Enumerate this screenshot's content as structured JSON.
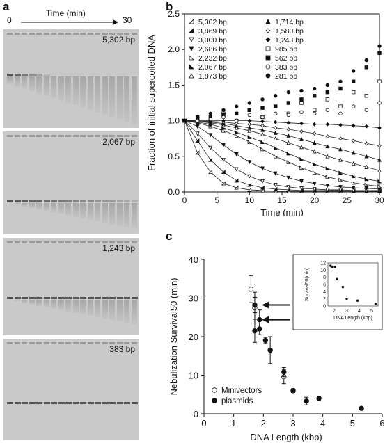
{
  "panel_a": {
    "letter": "a",
    "time_start": "0",
    "time_title": "Time (min)",
    "time_end": "30",
    "gels": [
      {
        "label": "5,302 bp"
      },
      {
        "label": "2,067 bp"
      },
      {
        "label": "1,243 bp"
      },
      {
        "label": "383 bp"
      }
    ]
  },
  "chart_data": [
    {
      "panel": "b",
      "type": "scatter",
      "xlabel": "Time (min)",
      "ylabel": "Fraction of initial supercoiled DNA",
      "xlim": [
        0,
        30
      ],
      "ylim": [
        0,
        2.5
      ],
      "xticks": [
        "0",
        "5",
        "10",
        "15",
        "20",
        "25",
        "30"
      ],
      "yticks": [
        "0.0",
        "0.5",
        "1.0",
        "1.5",
        "2.0",
        "2.5"
      ],
      "legend_position": "top-left",
      "x": [
        0,
        2,
        4,
        6,
        8,
        10,
        12,
        14,
        16,
        18,
        20,
        22,
        24,
        26,
        28,
        30
      ],
      "series": [
        {
          "name": "5,302 bp",
          "marker": "half-triangle-open",
          "values": [
            1.0,
            0.55,
            0.28,
            0.12,
            0.06,
            0.03,
            0.02,
            0.01,
            0.01,
            0.01,
            0.01,
            0.01,
            0.01,
            0.01,
            0.01,
            0.01
          ]
        },
        {
          "name": "3,869 bp",
          "marker": "half-triangle-filled",
          "values": [
            1.0,
            0.72,
            0.45,
            0.28,
            0.16,
            0.1,
            0.06,
            0.04,
            0.03,
            0.02,
            0.02,
            0.02,
            0.02,
            0.01,
            0.01,
            0.01
          ]
        },
        {
          "name": "3,000 bp",
          "marker": "triangle-down-open",
          "values": [
            1.0,
            0.82,
            0.62,
            0.45,
            0.32,
            0.22,
            0.15,
            0.1,
            0.07,
            0.05,
            0.04,
            0.03,
            0.03,
            0.02,
            0.02,
            0.02
          ]
        },
        {
          "name": "2,686 bp",
          "marker": "triangle-down-filled",
          "values": [
            1.0,
            0.92,
            0.8,
            0.66,
            0.53,
            0.42,
            0.33,
            0.26,
            0.2,
            0.15,
            0.12,
            0.09,
            0.07,
            0.06,
            0.05,
            0.04
          ]
        },
        {
          "name": "2,232 bp",
          "marker": "half-triangle-open-r",
          "values": [
            1.0,
            0.97,
            0.92,
            0.86,
            0.79,
            0.7,
            0.6,
            0.5,
            0.42,
            0.34,
            0.27,
            0.21,
            0.17,
            0.13,
            0.1,
            0.08
          ]
        },
        {
          "name": "2,067 bp",
          "marker": "half-triangle-filled-r",
          "values": [
            1.0,
            0.98,
            0.95,
            0.9,
            0.84,
            0.77,
            0.7,
            0.62,
            0.54,
            0.46,
            0.39,
            0.33,
            0.27,
            0.22,
            0.18,
            0.15
          ]
        },
        {
          "name": "1,873 bp",
          "marker": "triangle-open",
          "values": [
            1.0,
            0.99,
            0.97,
            0.94,
            0.9,
            0.86,
            0.81,
            0.75,
            0.69,
            0.63,
            0.57,
            0.5,
            0.45,
            0.4,
            0.35,
            0.3
          ]
        },
        {
          "name": "1,714 bp",
          "marker": "triangle-filled",
          "values": [
            1.0,
            1.0,
            0.98,
            0.96,
            0.93,
            0.9,
            0.87,
            0.83,
            0.79,
            0.74,
            0.69,
            0.64,
            0.6,
            0.55,
            0.5,
            0.45
          ]
        },
        {
          "name": "1,580 bp",
          "marker": "diamond-open",
          "values": [
            1.0,
            1.0,
            0.99,
            0.98,
            0.96,
            0.95,
            0.93,
            0.9,
            0.88,
            0.85,
            0.82,
            0.78,
            0.75,
            0.72,
            0.68,
            0.65
          ]
        },
        {
          "name": "1,243 bp",
          "marker": "diamond-filled",
          "values": [
            1.0,
            1.01,
            1.0,
            1.0,
            1.0,
            1.0,
            0.99,
            0.98,
            0.97,
            0.96,
            0.95,
            0.95,
            0.94,
            0.93,
            0.92,
            0.9
          ]
        },
        {
          "name": "985 bp",
          "marker": "square-open",
          "values": [
            1.0,
            1.05,
            1.02,
            1.1,
            1.0,
            1.15,
            1.05,
            1.2,
            1.1,
            1.25,
            1.15,
            1.3,
            1.2,
            1.4,
            1.35,
            1.55
          ]
        },
        {
          "name": "562 bp",
          "marker": "square-filled",
          "values": [
            1.0,
            1.03,
            1.05,
            1.08,
            1.1,
            1.15,
            1.18,
            1.2,
            1.25,
            1.3,
            1.35,
            1.4,
            1.45,
            1.55,
            1.75,
            1.95
          ]
        },
        {
          "name": "383 bp",
          "marker": "circle-open",
          "values": [
            1.0,
            1.0,
            1.02,
            1.05,
            1.0,
            1.08,
            1.05,
            1.1,
            1.08,
            1.12,
            1.1,
            1.15,
            1.1,
            1.2,
            1.15,
            1.25
          ]
        },
        {
          "name": "281 bp",
          "marker": "circle-filled",
          "values": [
            1.0,
            1.05,
            1.1,
            1.15,
            1.2,
            1.25,
            1.3,
            1.35,
            1.4,
            1.42,
            1.45,
            1.5,
            1.55,
            1.7,
            1.85,
            2.05
          ]
        }
      ]
    },
    {
      "panel": "c",
      "type": "scatter",
      "xlabel": "DNA Length (kbp)",
      "ylabel": "Nebulization Survival50 (min)",
      "xlim": [
        0,
        6
      ],
      "ylim": [
        0,
        40
      ],
      "xticks": [
        "0",
        "1",
        "2",
        "3",
        "4",
        "5",
        "6"
      ],
      "yticks": [
        "0",
        "10",
        "20",
        "30",
        "40"
      ],
      "legend_position": "bottom-left",
      "series": [
        {
          "name": "Minivectors",
          "marker": "circle-open",
          "points": [
            {
              "x": 1.58,
              "y": 32.3,
              "err": 3.5
            },
            {
              "x": 1.71,
              "y": 27.5,
              "err": 4.0
            },
            {
              "x": 2.69,
              "y": 9.6,
              "err": 1.8
            }
          ]
        },
        {
          "name": "plasmids",
          "marker": "circle-filled",
          "points": [
            {
              "x": 1.71,
              "y": 28.2,
              "err": 2.0
            },
            {
              "x": 1.71,
              "y": 21.5,
              "err": 3.0
            },
            {
              "x": 1.87,
              "y": 24.4,
              "err": 2.5
            },
            {
              "x": 1.87,
              "y": 22.0,
              "err": 1.5
            },
            {
              "x": 2.07,
              "y": 19.0,
              "err": 0.8
            },
            {
              "x": 2.23,
              "y": 16.5,
              "err": 3.5
            },
            {
              "x": 2.69,
              "y": 10.8,
              "err": 1.2
            },
            {
              "x": 3.0,
              "y": 6.0,
              "err": 0.5
            },
            {
              "x": 3.45,
              "y": 3.3,
              "err": 1.0
            },
            {
              "x": 3.87,
              "y": 4.0,
              "err": 0.6
            },
            {
              "x": 5.3,
              "y": 1.4,
              "err": 0.3
            }
          ]
        }
      ],
      "arrows_at_y": [
        28.2,
        24.4
      ]
    },
    {
      "panel": "c-inset",
      "type": "scatter",
      "xlabel": "DNA Length (kbp)",
      "ylabel": "Survival50(min)",
      "xlim": [
        1.5,
        5.5
      ],
      "ylim": [
        0,
        12
      ],
      "xticks": [
        "2",
        "3",
        "4",
        "5"
      ],
      "yticks": [
        "0",
        "2",
        "4",
        "6",
        "8",
        "10",
        "12"
      ],
      "series": [
        {
          "marker": "dot",
          "points": [
            {
              "x": 1.71,
              "y": 11.2
            },
            {
              "x": 1.87,
              "y": 10.8
            },
            {
              "x": 2.07,
              "y": 10.9
            },
            {
              "x": 2.23,
              "y": 7.5
            },
            {
              "x": 2.69,
              "y": 5.3
            },
            {
              "x": 3.0,
              "y": 2.0
            },
            {
              "x": 3.87,
              "y": 1.5
            },
            {
              "x": 5.3,
              "y": 0.6
            }
          ]
        }
      ]
    }
  ],
  "panel_b_letter": "b",
  "panel_c_letter": "c"
}
